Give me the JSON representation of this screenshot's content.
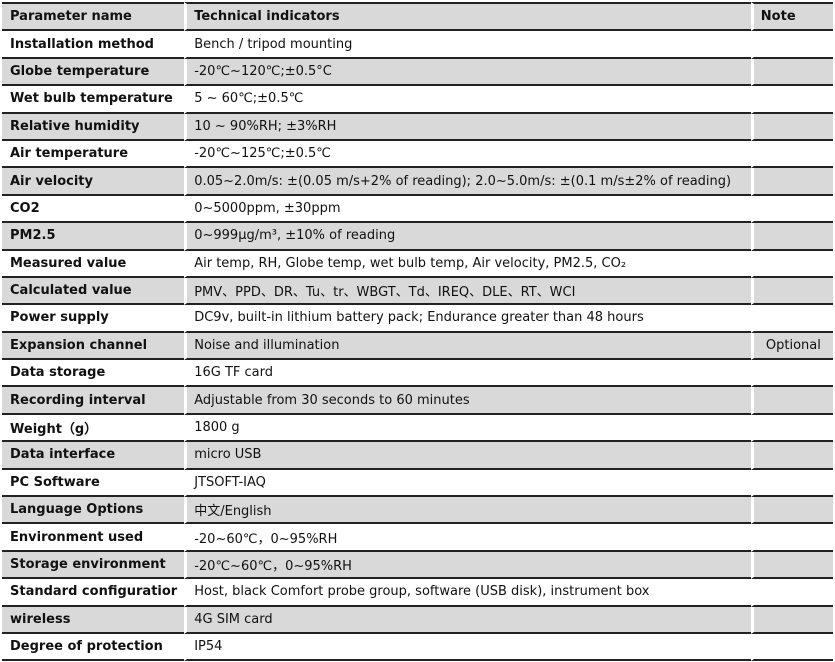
{
  "header": {
    "col1": "Parameter name",
    "col2": "Technical indicators",
    "col3": "Note"
  },
  "rows": [
    {
      "name": "Installation method",
      "value": "Bench / tripod mounting",
      "note": ""
    },
    {
      "name": "Globe temperature",
      "value": "-20℃~120℃;±0.5°C",
      "note": ""
    },
    {
      "name": "Wet bulb temperature",
      "value": "5 ~ 60℃;±0.5℃",
      "note": ""
    },
    {
      "name": "Relative humidity",
      "value": "10 ~ 90%RH;  ±3%RH",
      "note": ""
    },
    {
      "name": "Air temperature",
      "value": "-20℃~125℃;±0.5℃",
      "note": ""
    },
    {
      "name": "Air velocity",
      "value": "0.05~2.0m/s:  ±(0.05 m/s+2% of reading);    2.0~5.0m/s: ±(0.1 m/s±2% of reading)",
      "note": ""
    },
    {
      "name": "CO2",
      "value": "0~5000ppm, ±30ppm",
      "note": ""
    },
    {
      "name": "PM2.5",
      "value": "0~999μg/m³,  ±10% of reading",
      "note": ""
    },
    {
      "name": "Measured value",
      "value": "Air temp, RH, Globe temp, wet bulb temp, Air velocity, PM2.5, CO₂",
      "note": ""
    },
    {
      "name": "Calculated value",
      "value": " PMV、PPD、DR、Tu、tr、WBGT、Td、IREQ、DLE、RT、WCI",
      "note": ""
    },
    {
      "name": "Power supply",
      "value": "DC9v, built-in lithium battery pack; Endurance greater than 48 hours",
      "note": ""
    },
    {
      "name": "Expansion channel",
      "value": "Noise and illumination",
      "note": "Optional"
    },
    {
      "name": "Data storage",
      "value": "16G TF card",
      "note": ""
    },
    {
      "name": "Recording interval",
      "value": "Adjustable from 30 seconds to 60 minutes",
      "note": ""
    },
    {
      "name": "Weight（g）",
      "value": "1800 g",
      "note": ""
    },
    {
      "name": "Data interface",
      "value": "micro USB",
      "note": ""
    },
    {
      "name": "PC Software",
      "value": "JTSOFT-IAQ",
      "note": ""
    },
    {
      "name": "Language Options",
      "value": "中文/English",
      "note": ""
    },
    {
      "name": "Environment used",
      "value": "-20~60℃，0~95%RH",
      "note": ""
    },
    {
      "name": "Storage environment",
      "value": "-20℃~60℃，0~95%RH",
      "note": ""
    },
    {
      "name": "Standard configuratior",
      "value": "Host, black  Comfort probe group, software (USB disk), instrument box",
      "note": ""
    },
    {
      "name": "wireless",
      "value": "4G SIM card",
      "note": ""
    },
    {
      "name": "Degree of protection",
      "value": "IP54",
      "note": ""
    }
  ],
  "colors": {
    "stripe": "#d9d9d9",
    "rule": "#222222"
  }
}
